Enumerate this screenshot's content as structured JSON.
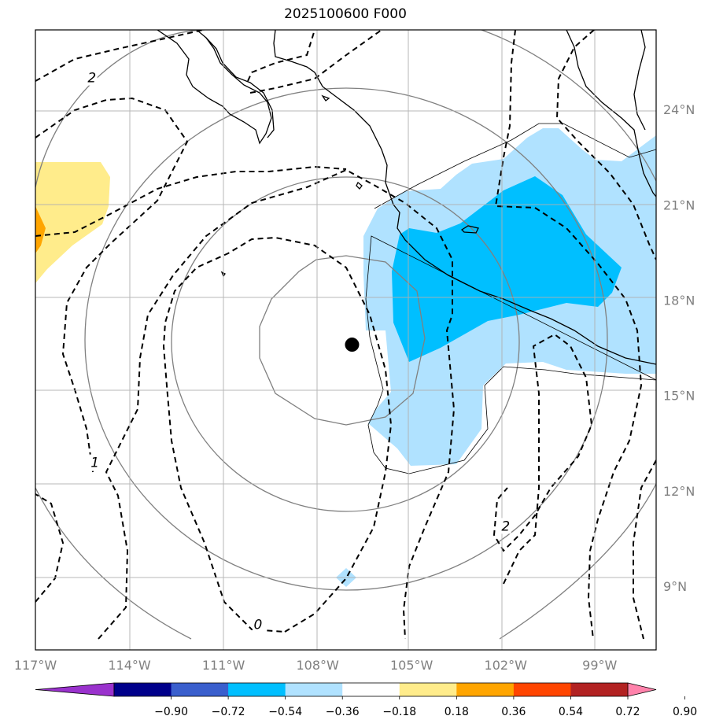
{
  "title": "2025100600 F000",
  "map": {
    "lon_range": [
      -117,
      -97.2
    ],
    "lat_range": [
      7,
      26.5
    ],
    "storm_center": {
      "lon": -106.9,
      "lat": 16.6
    },
    "lon_ticks": [
      {
        "lon": -117,
        "label": "117°W"
      },
      {
        "lon": -114,
        "label": "114°W"
      },
      {
        "lon": -111,
        "label": "111°W"
      },
      {
        "lon": -108,
        "label": "108°W"
      },
      {
        "lon": -105,
        "label": "105°W"
      },
      {
        "lon": -102,
        "label": "102°W"
      },
      {
        "lon": -99,
        "label": "99°W"
      }
    ],
    "lat_ticks": [
      {
        "lat": 24,
        "label": "24°N"
      },
      {
        "lat": 21,
        "label": "21°N"
      },
      {
        "lat": 18,
        "label": "18°N"
      },
      {
        "lat": 15,
        "label": "15°N"
      },
      {
        "lat": 12,
        "label": "12°N"
      },
      {
        "lat": 9,
        "label": "9°N"
      }
    ],
    "contour_labels": [
      {
        "text": "2",
        "lon": -115.2,
        "lat": 25.0
      },
      {
        "text": "1",
        "lon": -115.1,
        "lat": 12.9
      },
      {
        "text": "0",
        "lon": -109.9,
        "lat": 7.8
      },
      {
        "text": "2",
        "lon": -102.0,
        "lat": 10.9
      }
    ]
  },
  "colorbar": {
    "colors": [
      "#9a32cd",
      "#00008b",
      "#3a5fcd",
      "#00bfff",
      "#b0e2ff",
      "#ffffff",
      "#ffec8b",
      "#ffa500",
      "#ff4500",
      "#b22222",
      "#ff82ab"
    ],
    "labels": [
      "−0.90",
      "−0.72",
      "−0.54",
      "−0.36",
      "−0.18",
      "0.18",
      "0.36",
      "0.54",
      "0.72",
      "0.90"
    ]
  }
}
